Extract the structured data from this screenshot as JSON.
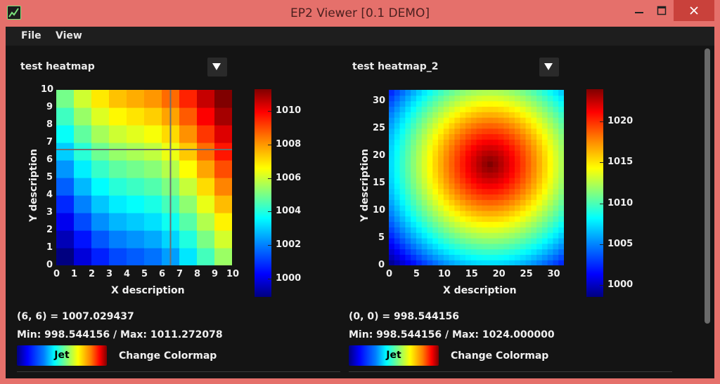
{
  "window": {
    "title": "EP2 Viewer [0.1 DEMO]",
    "controls": {
      "minimize": "—",
      "maximize": "☐",
      "close": "✕"
    }
  },
  "menu": {
    "file": "File",
    "view": "View"
  },
  "panels": [
    {
      "selection": "test heatmap",
      "x_ticks": [
        "0",
        "1",
        "2",
        "3",
        "4",
        "5",
        "6",
        "7",
        "8",
        "9",
        "10"
      ],
      "y_ticks": [
        "0",
        "1",
        "2",
        "3",
        "4",
        "5",
        "6",
        "7",
        "8",
        "9",
        "10"
      ],
      "xlabel": "X description",
      "ylabel": "Y description",
      "colorbar_ticks": [
        "1000",
        "1002",
        "1004",
        "1006",
        "1008",
        "1010"
      ],
      "readout": "(6, 6) = 1007.029437",
      "minmax": "Min: 998.544156 / Max: 1011.272078",
      "colormap_name": "Jet",
      "change_label": "Change Colormap"
    },
    {
      "selection": "test heatmap_2",
      "x_ticks": [
        "0",
        "5",
        "10",
        "15",
        "20",
        "25",
        "30"
      ],
      "y_ticks": [
        "0",
        "5",
        "10",
        "15",
        "20",
        "25",
        "30"
      ],
      "xlabel": "X description",
      "ylabel": "Y description",
      "colorbar_ticks": [
        "1000",
        "1005",
        "1010",
        "1015",
        "1020"
      ],
      "readout": "(0, 0) = 998.544156",
      "minmax": "Min: 998.544156 / Max: 1024.000000",
      "colormap_name": "Jet",
      "change_label": "Change Colormap"
    }
  ],
  "chart_data": [
    {
      "type": "heatmap",
      "xlabel": "X description",
      "ylabel": "Y description",
      "grid_size": [
        10,
        10
      ],
      "xlim": [
        0,
        10
      ],
      "ylim": [
        0,
        10
      ],
      "zlim": [
        998.544156,
        1011.272078
      ],
      "formula": "z increases with x and y; value(6,6)=1007.029437",
      "crosshair": {
        "x": 6.5,
        "y": 6.6
      },
      "colormap": "Jet"
    },
    {
      "type": "heatmap",
      "xlabel": "X description",
      "ylabel": "Y description",
      "grid_size": [
        32,
        32
      ],
      "xlim": [
        0,
        32
      ],
      "ylim": [
        0,
        32
      ],
      "zlim": [
        998.544156,
        1024.0
      ],
      "peak": {
        "x": 18.5,
        "y": 18.5,
        "value": 1024.0
      },
      "colormap": "Jet"
    }
  ],
  "colors": {
    "window_frame": "#e5706b",
    "client_bg": "#141414",
    "close_button": "#c9413b"
  }
}
